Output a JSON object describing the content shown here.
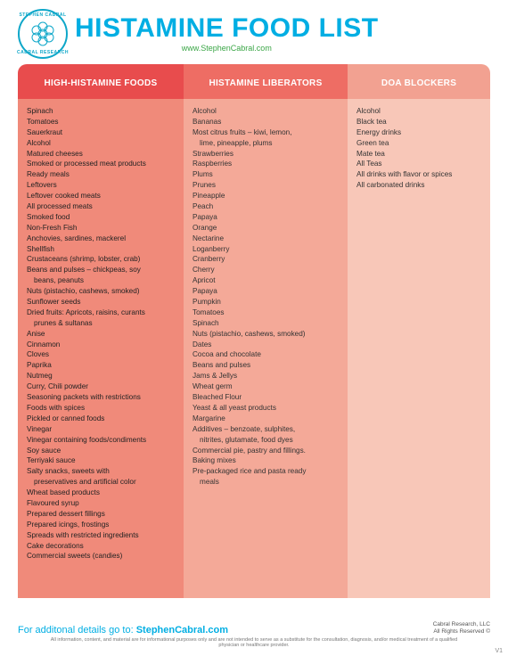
{
  "header": {
    "logo_top": "STEPHEN CABRAL",
    "logo_bottom": "CABRAL RESEARCH",
    "title": "HISTAMINE FOOD LIST",
    "subtitle": "www.StephenCabral.com"
  },
  "colors": {
    "title": "#00aee3",
    "subtitle": "#3aa646",
    "head1": "#e84c4d",
    "head2": "#ee6d64",
    "head3": "#f2a191",
    "body1": "#f08a7a",
    "body2": "#f4a998",
    "body3": "#f8c7b8"
  },
  "columns": [
    {
      "title": "HIGH-HISTAMINE FOODS",
      "items": [
        "Spinach",
        "Tomatoes",
        "Sauerkraut",
        "Alcohol",
        "Matured cheeses",
        "Smoked or processed meat products",
        "Ready meals",
        "Leftovers",
        "Leftover cooked meats",
        "All processed meats",
        "Smoked food",
        "Non-Fresh Fish",
        "Anchovies, sardines, mackerel",
        "Shellfish",
        "Crustaceans (shrimp, lobster, crab)",
        "Beans and pulses – chickpeas, soy\n  beans, peanuts",
        "Nuts (pistachio, cashews, smoked)",
        "Sunflower seeds",
        "Dried fruits: Apricots, raisins, curants\n  prunes & sultanas",
        "Anise",
        "Cinnamon",
        "Cloves",
        "Paprika",
        "Nutmeg",
        "Curry, Chili powder",
        "Seasoning packets with restrictions",
        "Foods with spices",
        "Pickled or canned foods",
        "Vinegar",
        "Vinegar containing foods/condiments",
        "Soy sauce",
        "Terriyaki sauce",
        "Salty snacks, sweets with\n  preservatives and artificial color",
        "Wheat based products",
        "Flavoured syrup",
        "Prepared dessert fillings",
        "Prepared icings, frostings",
        "Spreads with restricted ingredients",
        "Cake decorations",
        "Commercial sweets (candies)"
      ]
    },
    {
      "title": "HISTAMINE LIBERATORS",
      "items": [
        "Alcohol",
        "Bananas",
        "Most citrus fruits – kiwi, lemon,\n  lime, pineapple, plums",
        "Strawberries",
        "Raspberries",
        "Plums",
        "Prunes",
        "Pineapple",
        "Peach",
        "Papaya",
        "Orange",
        "Nectarine",
        "Loganberry",
        "Cranberry",
        "Cherry",
        "Apricot",
        "Papaya",
        "Pumpkin",
        "Tomatoes",
        "Spinach",
        "Nuts (pistachio, cashews, smoked)",
        "Dates",
        "Cocoa and chocolate",
        "Beans and pulses",
        "Jams & Jellys",
        "Wheat germ",
        "Bleached Flour",
        "Yeast & all yeast products",
        "Margarine",
        "Additives – benzoate, sulphites,\n  nitrites, glutamate, food dyes",
        "Commercial pie, pastry and fillings.",
        "Baking mixes",
        "Pre-packaged rice and pasta ready\n  meals"
      ]
    },
    {
      "title": "DOA BLOCKERS",
      "items": [
        "Alcohol",
        "Black tea",
        "Energy drinks",
        "Green tea",
        "Mate tea",
        "All Teas",
        "All drinks with flavor or spices",
        "All carbonated drinks"
      ]
    }
  ],
  "footer": {
    "cta_prefix": "For additonal details go to: ",
    "cta_site": "StephenCabral.com",
    "right1": "Cabral Research, LLC",
    "right2": "All Rights Reserved ©",
    "disclaimer": "All information, content, and material are for informational purposes only and are not intended to serve as a substitute for the consultation, diagnosis, and/or medical treatment of a qualified physician or healthcare provider.",
    "version": "V1"
  }
}
